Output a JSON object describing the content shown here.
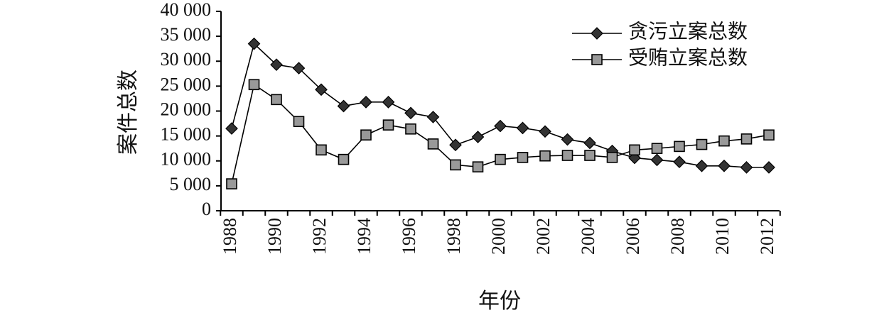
{
  "chart_data": {
    "type": "line",
    "xlabel": "年份",
    "ylabel": "案件总数",
    "ylim": [
      0,
      40000
    ],
    "yticks": [
      0,
      5000,
      10000,
      15000,
      20000,
      25000,
      30000,
      35000,
      40000
    ],
    "ytick_labels": [
      "0",
      "5 000",
      "10 000",
      "15 000",
      "20 000",
      "25 000",
      "30 000",
      "35 000",
      "40 000"
    ],
    "x": [
      1988,
      1989,
      1990,
      1991,
      1992,
      1993,
      1994,
      1995,
      1996,
      1997,
      1998,
      1999,
      2000,
      2001,
      2002,
      2003,
      2004,
      2005,
      2006,
      2007,
      2008,
      2009,
      2010,
      2011,
      2012
    ],
    "xtick_labels": [
      "1988",
      "1990",
      "1992",
      "1994",
      "1996",
      "1998",
      "2000",
      "2002",
      "2004",
      "2006",
      "2008",
      "2010",
      "2012"
    ],
    "grid": false,
    "legend_position": "top-right",
    "series": [
      {
        "name": "贪污立案总数",
        "marker": "diamond",
        "color": "#333333",
        "values": [
          16500,
          33500,
          29300,
          28600,
          24300,
          21000,
          21800,
          21800,
          19600,
          18800,
          13200,
          14800,
          17000,
          16600,
          15900,
          14300,
          13600,
          12000,
          10600,
          10200,
          9800,
          9000,
          9000,
          8700,
          8700
        ]
      },
      {
        "name": "受贿立案总数",
        "marker": "square",
        "color": "#999999",
        "values": [
          5400,
          25300,
          22300,
          17900,
          12200,
          10300,
          15200,
          17200,
          16400,
          13400,
          9200,
          8800,
          10300,
          10700,
          11000,
          11100,
          11100,
          10700,
          12200,
          12500,
          12900,
          13300,
          14000,
          14400,
          15200
        ]
      }
    ]
  }
}
